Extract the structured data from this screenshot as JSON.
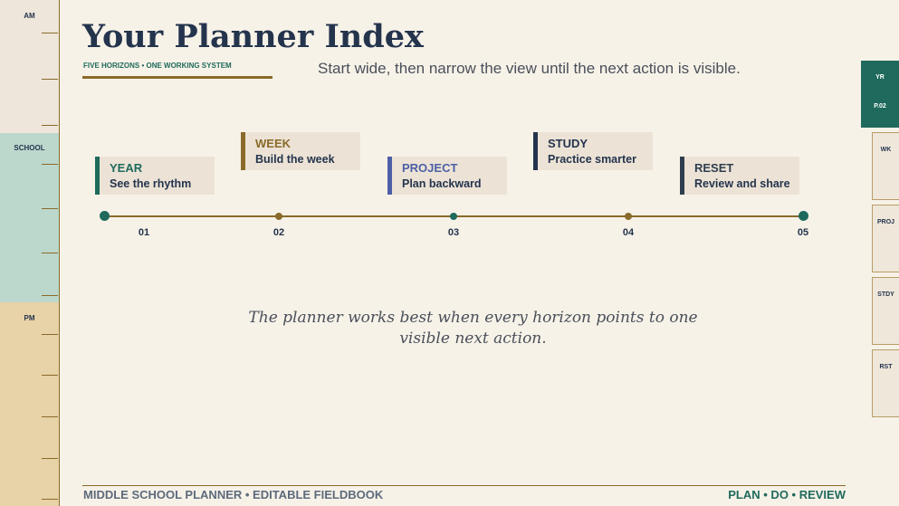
{
  "rail": {
    "am_label": "AM",
    "school_label": "SCHOOL",
    "pm_label": "PM"
  },
  "header": {
    "title": "Your Planner Index",
    "kicker": "FIVE HORIZONS • ONE WORKING SYSTEM",
    "intro": "Start wide, then narrow the view until the next action is visible."
  },
  "timeline": {
    "steps": [
      {
        "num": "01",
        "head": "YEAR",
        "sub": "See the rhythm",
        "color": "#1f6a5c"
      },
      {
        "num": "02",
        "head": "WEEK",
        "sub": "Build the week",
        "color": "#8a6a2a"
      },
      {
        "num": "03",
        "head": "PROJECT",
        "sub": "Plan backward",
        "color": "#4d5fa6"
      },
      {
        "num": "04",
        "head": "STUDY",
        "sub": "Practice smarter",
        "color": "#24344d"
      },
      {
        "num": "05",
        "head": "RESET",
        "sub": "Review and share",
        "color": "#2f3e4e"
      }
    ]
  },
  "quote": "The planner works best when every horizon points to one visible next action.",
  "footer": {
    "left": "MIDDLE SCHOOL PLANNER  •  EDITABLE FIELDBOOK",
    "right": "PLAN  •  DO  •  REVIEW"
  },
  "tabs": {
    "active_top": "YR",
    "active_bottom": "P.02",
    "items": [
      "WK",
      "PROJ",
      "STDY",
      "RST"
    ]
  },
  "colors": {
    "background": "#f7f2e8",
    "navy": "#24344d",
    "teal": "#1f6a5c",
    "gold": "#8a6a2a"
  }
}
